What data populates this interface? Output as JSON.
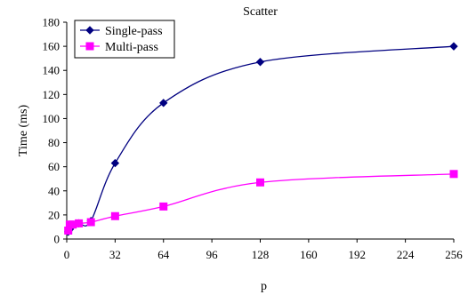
{
  "chart_data": {
    "type": "line",
    "title": "Scatter",
    "xlabel": "p",
    "ylabel": "Time (ms)",
    "xlim": [
      0,
      256
    ],
    "ylim": [
      0,
      180
    ],
    "xticks": [
      0,
      32,
      64,
      96,
      128,
      160,
      192,
      224,
      256
    ],
    "yticks": [
      0,
      20,
      40,
      60,
      80,
      100,
      120,
      140,
      160,
      180
    ],
    "grid": false,
    "legend_position": "top-left",
    "series": [
      {
        "name": "Single-pass",
        "color": "#000080",
        "marker": "diamond",
        "x": [
          1,
          2,
          4,
          8,
          16,
          32,
          64,
          128,
          256
        ],
        "y": [
          6,
          8,
          11,
          13,
          15,
          63,
          113,
          147,
          160
        ]
      },
      {
        "name": "Multi-pass",
        "color": "#ff00ff",
        "marker": "square",
        "x": [
          1,
          2,
          4,
          8,
          16,
          32,
          64,
          128,
          256
        ],
        "y": [
          7,
          12,
          12,
          13,
          14,
          19,
          27,
          47,
          54
        ]
      }
    ]
  }
}
